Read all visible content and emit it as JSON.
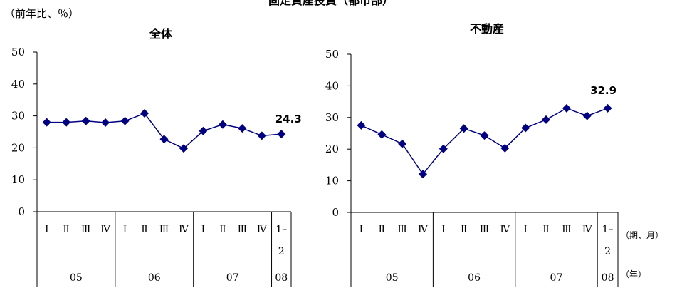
{
  "figure": {
    "title": "固定資産投資（都市部）",
    "unit": "（前年比、％）",
    "period_axis_label": "（期、月）",
    "year_axis_label": "（年）"
  },
  "chart_data": [
    {
      "type": "line",
      "title": "全体",
      "categories": [
        "I",
        "II",
        "III",
        "IV",
        "I",
        "II",
        "III",
        "IV",
        "I",
        "II",
        "III",
        "IV",
        "1–2"
      ],
      "category_lines": [
        [
          "I"
        ],
        [
          "Ⅱ"
        ],
        [
          "Ⅲ"
        ],
        [
          "Ⅳ"
        ],
        [
          "I"
        ],
        [
          "Ⅱ"
        ],
        [
          "Ⅲ"
        ],
        [
          "Ⅳ"
        ],
        [
          "I"
        ],
        [
          "Ⅱ"
        ],
        [
          "Ⅲ"
        ],
        [
          "Ⅳ"
        ],
        [
          "1–",
          "2"
        ]
      ],
      "years": [
        {
          "label": "05",
          "count": 4
        },
        {
          "label": "06",
          "count": 4
        },
        {
          "label": "07",
          "count": 4
        },
        {
          "label": "08",
          "count": 1
        }
      ],
      "values": [
        28.0,
        28.0,
        28.4,
        27.9,
        28.4,
        30.8,
        22.7,
        19.8,
        25.3,
        27.3,
        26.1,
        23.8,
        24.3
      ],
      "yticks": [
        0,
        10,
        20,
        30,
        40,
        50
      ],
      "ylim": [
        0,
        50
      ],
      "last_label": "24.3",
      "marker": "diamond",
      "color": "#000080"
    },
    {
      "type": "line",
      "title": "不動産",
      "categories": [
        "I",
        "II",
        "III",
        "IV",
        "I",
        "II",
        "III",
        "IV",
        "I",
        "II",
        "III",
        "IV",
        "1–2"
      ],
      "category_lines": [
        [
          "I"
        ],
        [
          "Ⅱ"
        ],
        [
          "Ⅲ"
        ],
        [
          "Ⅳ"
        ],
        [
          "I"
        ],
        [
          "Ⅱ"
        ],
        [
          "Ⅲ"
        ],
        [
          "Ⅳ"
        ],
        [
          "I"
        ],
        [
          "Ⅱ"
        ],
        [
          "Ⅲ"
        ],
        [
          "Ⅳ"
        ],
        [
          "1–",
          "2"
        ]
      ],
      "years": [
        {
          "label": "05",
          "count": 4
        },
        {
          "label": "06",
          "count": 4
        },
        {
          "label": "07",
          "count": 4
        },
        {
          "label": "08",
          "count": 1
        }
      ],
      "values": [
        27.5,
        24.6,
        21.7,
        12.1,
        20.1,
        26.5,
        24.3,
        20.3,
        26.7,
        29.3,
        32.9,
        30.5,
        32.9
      ],
      "yticks": [
        0,
        10,
        20,
        30,
        40,
        50
      ],
      "ylim": [
        0,
        50
      ],
      "last_label": "32.9",
      "marker": "diamond",
      "color": "#000080"
    }
  ]
}
